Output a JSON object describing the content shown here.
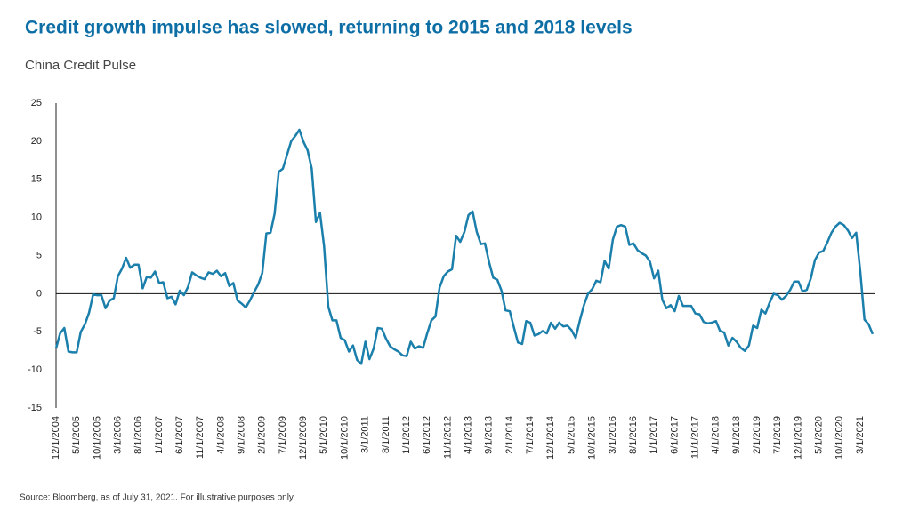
{
  "chart_data": {
    "type": "line",
    "title": "Credit growth impulse has slowed, returning to 2015 and 2018 levels",
    "subtitle": "China Credit Pulse",
    "source": "Source: Bloomberg, as of July 31, 2021. For illustrative purposes only.",
    "color": "#1b7fac",
    "ylim": [
      -15,
      25
    ],
    "yticks": [
      -15,
      -10,
      -5,
      0,
      5,
      10,
      15,
      20,
      25
    ],
    "categories": [
      "12/1/2004",
      null,
      null,
      null,
      null,
      "5/1/2005",
      null,
      null,
      null,
      null,
      "10/1/2005",
      null,
      null,
      null,
      null,
      "3/1/2006",
      null,
      null,
      null,
      null,
      "8/1/2006",
      null,
      null,
      null,
      null,
      "1/1/2007",
      null,
      null,
      null,
      null,
      "6/1/2007",
      null,
      null,
      null,
      null,
      "11/1/2007",
      null,
      null,
      null,
      null,
      "4/1/2008",
      null,
      null,
      null,
      null,
      "9/1/2008",
      null,
      null,
      null,
      null,
      "2/1/2009",
      null,
      null,
      null,
      null,
      "7/1/2009",
      null,
      null,
      null,
      null,
      "12/1/2009",
      null,
      null,
      null,
      null,
      "5/1/2010",
      null,
      null,
      null,
      null,
      "10/1/2010",
      null,
      null,
      null,
      null,
      "3/1/2011",
      null,
      null,
      null,
      null,
      "8/1/2011",
      null,
      null,
      null,
      null,
      "1/1/2012",
      null,
      null,
      null,
      null,
      "6/1/2012",
      null,
      null,
      null,
      null,
      "11/1/2012",
      null,
      null,
      null,
      null,
      "4/1/2013",
      null,
      null,
      null,
      null,
      "9/1/2013",
      null,
      null,
      null,
      null,
      "2/1/2014",
      null,
      null,
      null,
      null,
      "7/1/2014",
      null,
      null,
      null,
      null,
      "12/1/2014",
      null,
      null,
      null,
      null,
      "5/1/2015",
      null,
      null,
      null,
      null,
      "10/1/2015",
      null,
      null,
      null,
      null,
      "3/1/2016",
      null,
      null,
      null,
      null,
      "8/1/2016",
      null,
      null,
      null,
      null,
      "1/1/2017",
      null,
      null,
      null,
      null,
      "6/1/2017",
      null,
      null,
      null,
      null,
      "11/1/2017",
      null,
      null,
      null,
      null,
      "4/1/2018",
      null,
      null,
      null,
      null,
      "9/1/2018",
      null,
      null,
      null,
      null,
      "2/1/2019",
      null,
      null,
      null,
      null,
      "7/1/2019",
      null,
      null,
      null,
      null,
      "12/1/2019",
      null,
      null,
      null,
      null,
      "5/1/2020",
      null,
      null,
      null,
      null,
      "10/1/2020",
      null,
      null,
      null,
      null,
      "3/1/2021",
      null,
      null,
      null
    ],
    "values": [
      -7.2,
      -5.2,
      -4.5,
      -7.6,
      -7.7,
      -7.7,
      -5,
      -4,
      -2.5,
      -0.1,
      -0.2,
      -0.2,
      -1.9,
      -0.9,
      -0.6,
      2.3,
      3.3,
      4.7,
      3.4,
      3.8,
      3.8,
      0.7,
      2.2,
      2.1,
      2.9,
      1.4,
      1.5,
      -0.6,
      -0.4,
      -1.4,
      0.4,
      -0.2,
      0.9,
      2.8,
      2.4,
      2.1,
      1.9,
      2.8,
      2.6,
      3.0,
      2.3,
      2.7,
      1.0,
      1.4,
      -0.9,
      -1.3,
      -1.8,
      -0.9,
      0.2,
      1.2,
      2.7,
      7.9,
      8.0,
      10.5,
      16,
      16.4,
      18.2,
      20,
      20.7,
      21.5,
      19.9,
      18.8,
      16.4,
      9.4,
      10.6,
      6.2,
      -1.7,
      -3.5,
      -3.5,
      -5.8,
      -6.1,
      -7.6,
      -6.8,
      -8.7,
      -9.2,
      -6.3,
      -8.6,
      -7.2,
      -4.5,
      -4.6,
      -5.9,
      -6.9,
      -7.3,
      -7.6,
      -8.1,
      -8.2,
      -6.3,
      -7.2,
      -6.9,
      -7.1,
      -5.2,
      -3.5,
      -3.0,
      0.8,
      2.3,
      2.9,
      3.2,
      7.6,
      6.8,
      8.1,
      10.3,
      10.8,
      8.1,
      6.5,
      6.6,
      4.1,
      2.1,
      1.8,
      0.4,
      -2.2,
      -2.3,
      -4.4,
      -6.4,
      -6.6,
      -3.6,
      -3.8,
      -5.5,
      -5.3,
      -4.9,
      -5.2,
      -3.8,
      -4.6,
      -3.8,
      -4.3,
      -4.2,
      -4.8,
      -5.8,
      -3.5,
      -1.5,
      0,
      0.6,
      1.7,
      1.5,
      4.3,
      3.3,
      7.1,
      8.8,
      9.0,
      8.8,
      6.4,
      6.6,
      5.7,
      5.3,
      5.0,
      4.2,
      2.0,
      3.0,
      -0.8,
      -1.9,
      -1.5,
      -2.3,
      -0.3,
      -1.6,
      -1.6,
      -1.6,
      -2.6,
      -2.7,
      -3.7,
      -3.9,
      -3.8,
      -3.6,
      -4.9,
      -5.1,
      -6.8,
      -5.8,
      -6.3,
      -7.1,
      -7.5,
      -6.8,
      -4.2,
      -4.5,
      -2.1,
      -2.6,
      -1.2,
      0,
      -0.2,
      -0.8,
      -0.3,
      0.5,
      1.6,
      1.6,
      0.3,
      0.5,
      2.0,
      4.4,
      5.4,
      5.6,
      6.7,
      8.0,
      8.8,
      9.3,
      9.0,
      8.3,
      7.3,
      8.0,
      2.9,
      -3.4,
      -4.0,
      -5.3
    ]
  }
}
